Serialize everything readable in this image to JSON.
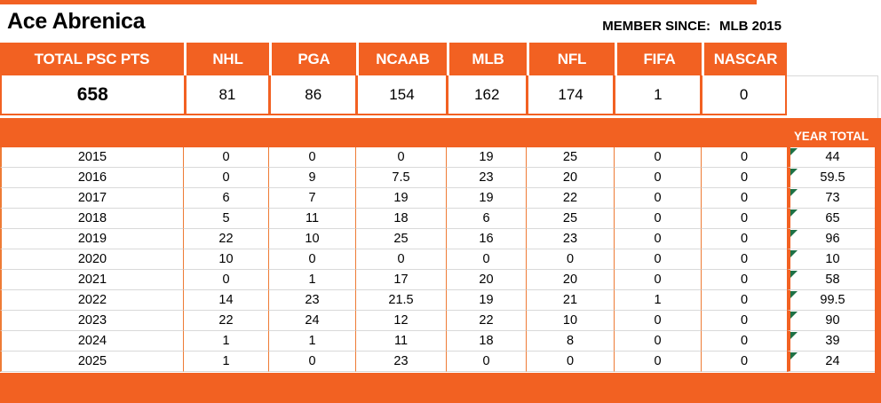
{
  "page": {
    "title": "Ace Abrenica",
    "member_since_label": "MEMBER SINCE:",
    "member_since_value": "MLB 2015"
  },
  "summary": {
    "columns": [
      "TOTAL PSC PTS",
      "NHL",
      "PGA",
      "NCAAB",
      "MLB",
      "NFL",
      "FIFA",
      "NASCAR"
    ],
    "totals": [
      "658",
      "81",
      "86",
      "154",
      "162",
      "174",
      "1",
      "0"
    ]
  },
  "year_table": {
    "total_column_label": "YEAR TOTAL",
    "sport_columns": [
      "NHL",
      "PGA",
      "NCAAB",
      "MLB",
      "NFL",
      "FIFA",
      "NASCAR"
    ],
    "rows": [
      {
        "year": "2015",
        "values": [
          "0",
          "0",
          "0",
          "19",
          "25",
          "0",
          "0"
        ],
        "year_total": "44"
      },
      {
        "year": "2016",
        "values": [
          "0",
          "9",
          "7.5",
          "23",
          "20",
          "0",
          "0"
        ],
        "year_total": "59.5"
      },
      {
        "year": "2017",
        "values": [
          "6",
          "7",
          "19",
          "19",
          "22",
          "0",
          "0"
        ],
        "year_total": "73"
      },
      {
        "year": "2018",
        "values": [
          "5",
          "11",
          "18",
          "6",
          "25",
          "0",
          "0"
        ],
        "year_total": "65"
      },
      {
        "year": "2019",
        "values": [
          "22",
          "10",
          "25",
          "16",
          "23",
          "0",
          "0"
        ],
        "year_total": "96"
      },
      {
        "year": "2020",
        "values": [
          "10",
          "0",
          "0",
          "0",
          "0",
          "0",
          "0"
        ],
        "year_total": "10"
      },
      {
        "year": "2021",
        "values": [
          "0",
          "1",
          "17",
          "20",
          "20",
          "0",
          "0"
        ],
        "year_total": "58"
      },
      {
        "year": "2022",
        "values": [
          "14",
          "23",
          "21.5",
          "19",
          "21",
          "1",
          "0"
        ],
        "year_total": "99.5"
      },
      {
        "year": "2023",
        "values": [
          "22",
          "24",
          "12",
          "22",
          "10",
          "0",
          "0"
        ],
        "year_total": "90"
      },
      {
        "year": "2024",
        "values": [
          "1",
          "1",
          "11",
          "18",
          "8",
          "0",
          "0"
        ],
        "year_total": "39"
      },
      {
        "year": "2025",
        "values": [
          "1",
          "0",
          "23",
          "0",
          "0",
          "0",
          "0"
        ],
        "year_total": "24"
      }
    ]
  },
  "colors": {
    "accent_orange": "#F26122",
    "grid_line_orange": "#EE7B35",
    "row_border_gray": "#D9D9D9",
    "error_triangle_green": "#1E7145"
  }
}
